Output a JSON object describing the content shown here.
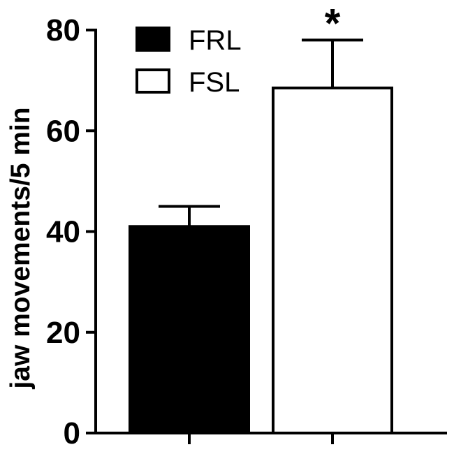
{
  "chart_data": {
    "type": "bar",
    "categories": [
      "FRL",
      "FSL"
    ],
    "values": [
      41,
      68.5
    ],
    "errors": [
      4,
      9.5
    ],
    "colors": [
      "#000000",
      "#ffffff"
    ],
    "ylabel": "jaw movements/5 min",
    "xlabel": "",
    "ylim": [
      0,
      80
    ],
    "yticks": [
      0,
      20,
      40,
      60,
      80
    ],
    "grid": false,
    "legend": {
      "placement": "top-left",
      "entries": [
        {
          "label": "FRL",
          "color": "#000000"
        },
        {
          "label": "FSL",
          "color": "#ffffff"
        }
      ]
    },
    "annotations": [
      {
        "category": "FSL",
        "text": "*"
      }
    ]
  }
}
